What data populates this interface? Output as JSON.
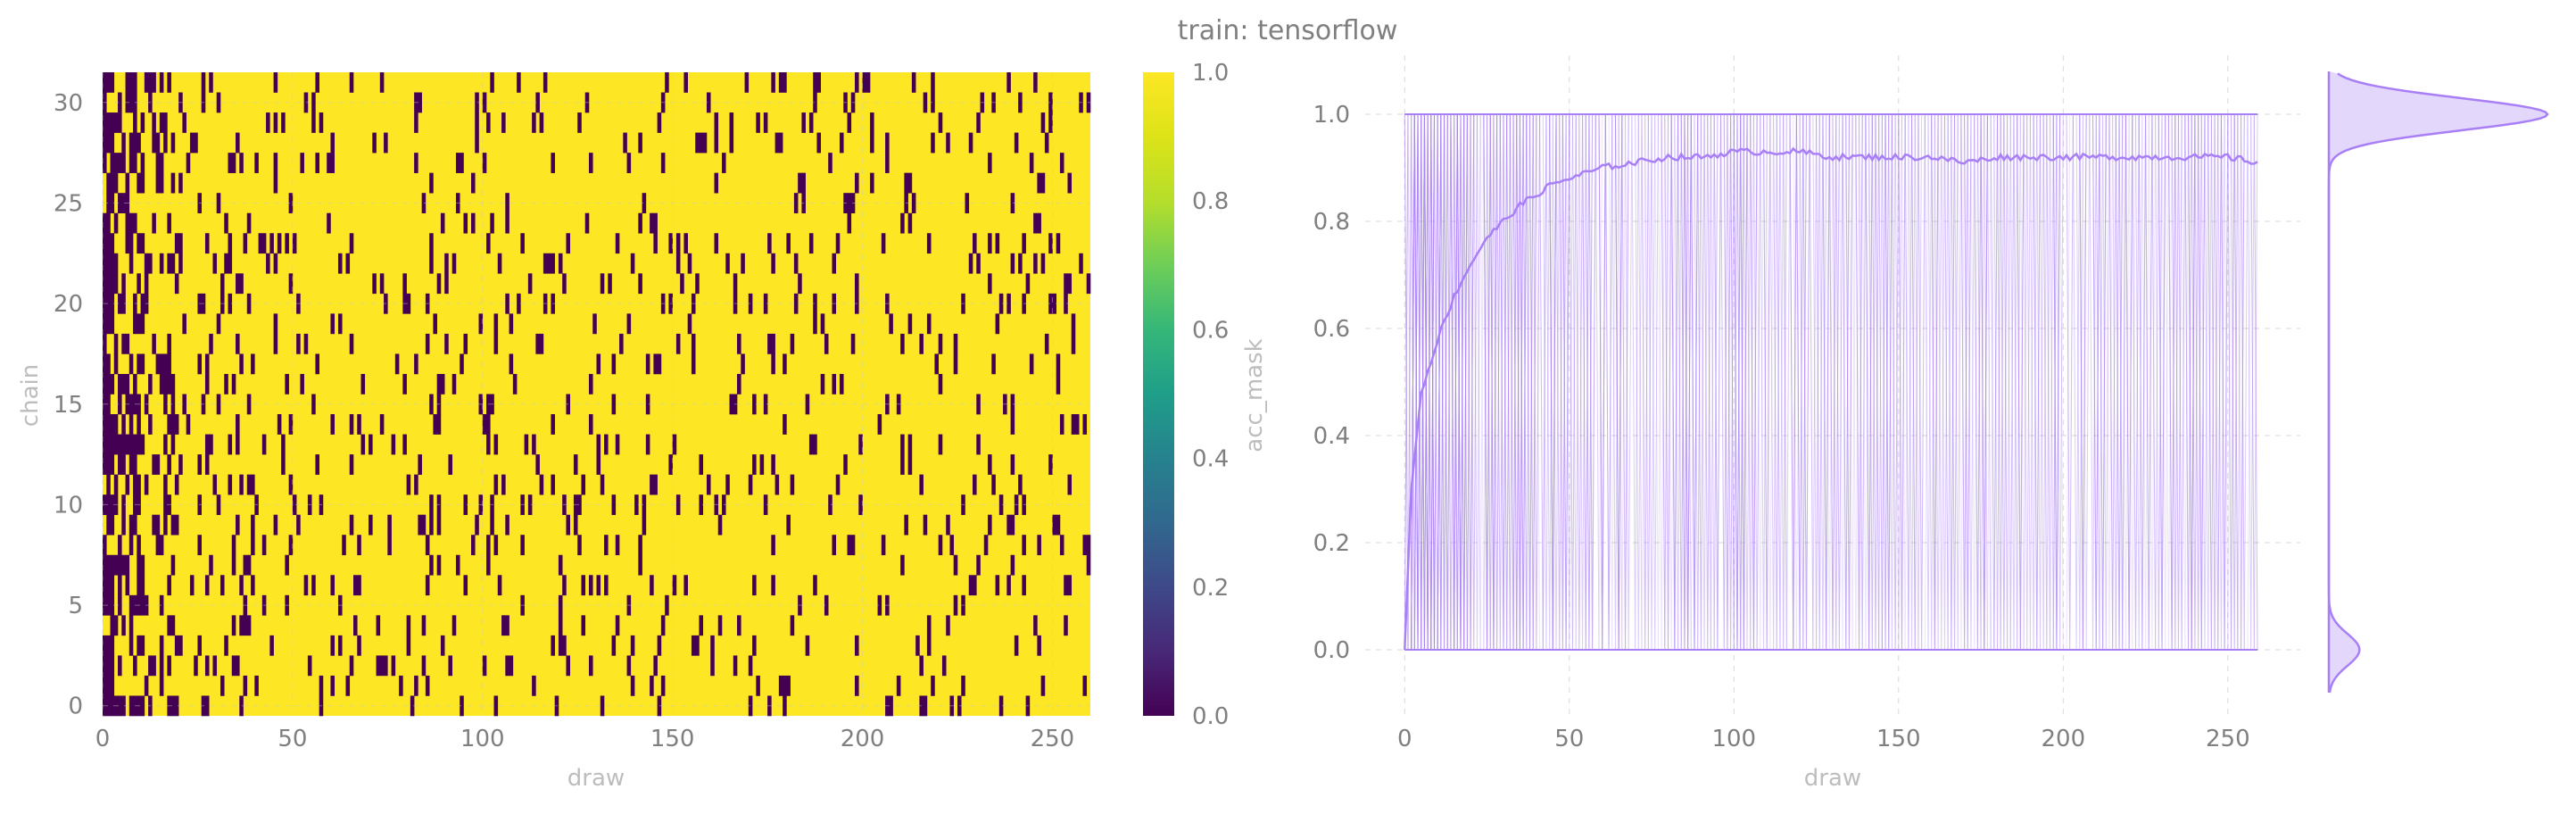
{
  "title": "train: tensorflow",
  "colors": {
    "tick_text": "#7f7f7f",
    "label_text": "#bdbdbd",
    "grid": "#d9d9d9",
    "trace": "#a97ff6",
    "trace_fill": "#d8c6fb",
    "heatmap_low": "#440154",
    "heatmap_high": "#fde725"
  },
  "chart_data": [
    {
      "type": "heatmap",
      "xlabel": "draw",
      "ylabel": "chain",
      "x_ticks": [
        "0",
        "50",
        "100",
        "150",
        "200",
        "250"
      ],
      "y_ticks": [
        "0",
        "5",
        "10",
        "15",
        "20",
        "25",
        "30"
      ],
      "xlim": [
        0,
        260
      ],
      "ylim": [
        -0.5,
        31.5
      ],
      "n_draws": 260,
      "n_chains": 32,
      "values_description_binary": [
        0,
        1
      ],
      "acceptance_rate_by_draw_range": [
        {
          "from": 0,
          "to": 3,
          "rate": 0.15
        },
        {
          "from": 3,
          "to": 10,
          "rate": 0.5
        },
        {
          "from": 10,
          "to": 20,
          "rate": 0.72
        },
        {
          "from": 20,
          "to": 40,
          "rate": 0.86
        },
        {
          "from": 40,
          "to": 260,
          "rate": 0.91
        }
      ],
      "colorbar": {
        "label": "acc_mask",
        "ticks": [
          "0.0",
          "0.2",
          "0.4",
          "0.6",
          "0.8",
          "1.0"
        ],
        "range": [
          0,
          1
        ]
      }
    },
    {
      "type": "line",
      "xlabel": "draw",
      "ylabel": "",
      "x_ticks": [
        "0",
        "50",
        "100",
        "150",
        "200",
        "250"
      ],
      "y_ticks": [
        "0.0",
        "0.2",
        "0.4",
        "0.6",
        "0.8",
        "1.0"
      ],
      "xlim": [
        -12,
        272
      ],
      "ylim": [
        -0.12,
        1.11
      ],
      "n_draws": 260,
      "trace_values_binary": [
        0,
        1
      ],
      "mean_acceptance": {
        "x": [
          0,
          2,
          5,
          10,
          15,
          20,
          25,
          30,
          35,
          40,
          45,
          50,
          60,
          70,
          80,
          90,
          100,
          110,
          120,
          130,
          140,
          150,
          160,
          170,
          180,
          190,
          200,
          210,
          220,
          230,
          240,
          250,
          259
        ],
        "y": [
          0.0,
          0.3,
          0.48,
          0.58,
          0.66,
          0.72,
          0.77,
          0.8,
          0.83,
          0.85,
          0.87,
          0.88,
          0.9,
          0.91,
          0.92,
          0.92,
          0.93,
          0.93,
          0.93,
          0.92,
          0.92,
          0.92,
          0.92,
          0.91,
          0.92,
          0.92,
          0.92,
          0.92,
          0.92,
          0.92,
          0.92,
          0.92,
          0.91
        ]
      },
      "marginal_density": {
        "peaks": [
          {
            "value": 1.0,
            "relative_height": 1.0
          },
          {
            "value": 0.0,
            "relative_height": 0.14
          }
        ]
      }
    }
  ]
}
